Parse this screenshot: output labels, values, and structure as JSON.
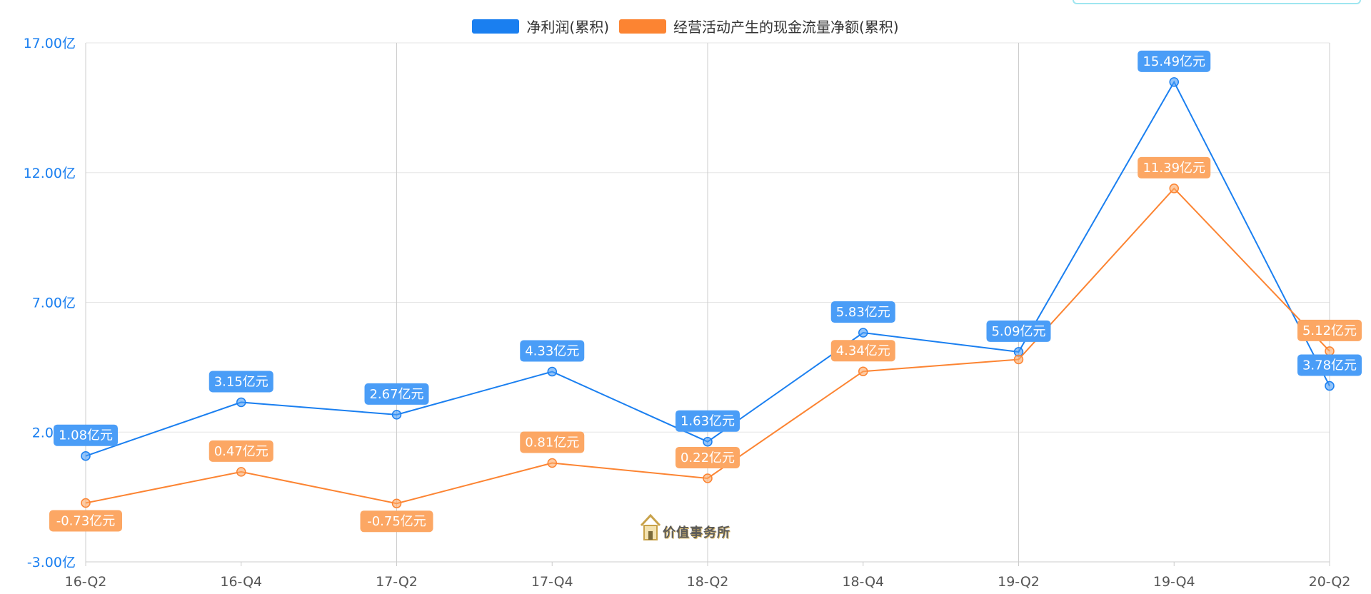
{
  "chart_data": {
    "type": "line",
    "categories": [
      "16-Q2",
      "16-Q4",
      "17-Q2",
      "17-Q4",
      "18-Q2",
      "18-Q4",
      "19-Q2",
      "19-Q4",
      "20-Q2"
    ],
    "y_ticks": [
      "17.00亿",
      "12.00亿",
      "7.00亿",
      "2.00亿",
      "-3.00亿"
    ],
    "y_tick_values": [
      17,
      12,
      7,
      2,
      -3
    ],
    "ylim": [
      -3,
      17
    ],
    "grid": true,
    "legend_position": "top-center",
    "series": [
      {
        "name": "净利润(累积)",
        "color": "#1a7ff0",
        "label_color": "#4a9df7",
        "values": [
          1.08,
          3.15,
          2.67,
          4.33,
          1.63,
          5.83,
          5.09,
          15.49,
          3.78
        ],
        "labels": [
          "1.08亿元",
          "3.15亿元",
          "2.67亿元",
          "4.33亿元",
          "1.63亿元",
          "5.83亿元",
          "5.09亿元",
          "15.49亿元",
          "3.78亿元"
        ],
        "label_side": [
          "above",
          "above",
          "above",
          "above",
          "above",
          "above",
          "above",
          "above",
          "above"
        ]
      },
      {
        "name": "经营活动产生的现金流量净额(累积)",
        "color": "#fc8432",
        "label_color": "#fca764",
        "values": [
          -0.73,
          0.47,
          -0.75,
          0.81,
          0.22,
          4.34,
          4.8,
          11.39,
          5.12
        ],
        "labels": [
          "-0.73亿元",
          "0.47亿元",
          "-0.75亿元",
          "0.81亿元",
          "0.22亿元",
          "4.34亿元",
          "",
          "11.39亿元",
          "5.12亿元"
        ],
        "label_side": [
          "below",
          "above",
          "below",
          "above",
          "above",
          "above",
          "above",
          "above",
          "above"
        ]
      }
    ]
  },
  "watermark": {
    "text": "价值事务所",
    "icon": "house-logo-icon"
  }
}
